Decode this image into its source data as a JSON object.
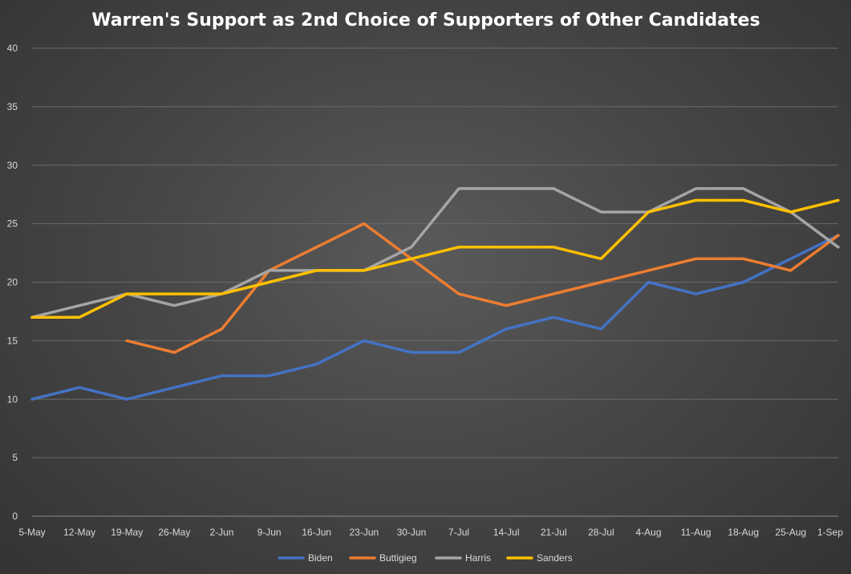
{
  "chart_data": {
    "type": "line",
    "title": "Warren's Support as 2nd Choice of Supporters of Other Candidates",
    "categories": [
      "5-May",
      "12-May",
      "19-May",
      "26-May",
      "2-Jun",
      "9-Jun",
      "16-Jun",
      "23-Jun",
      "30-Jun",
      "7-Jul",
      "14-Jul",
      "21-Jul",
      "28-Jul",
      "4-Aug",
      "11-Aug",
      "18-Aug",
      "25-Aug",
      "1-Sep"
    ],
    "ylim": [
      0,
      40
    ],
    "yticks": [
      "0",
      "5",
      "10",
      "15",
      "20",
      "25",
      "30",
      "35",
      "40"
    ],
    "grid": true,
    "legend_position": "bottom",
    "series": [
      {
        "name": "Biden",
        "color": "#4472c4",
        "values": [
          10,
          11,
          10,
          11,
          12,
          12,
          13,
          15,
          14,
          14,
          16,
          17,
          16,
          20,
          19,
          20,
          22,
          24
        ]
      },
      {
        "name": "Buttigieg",
        "color": "#ed7d31",
        "values": [
          null,
          null,
          15,
          14,
          16,
          21,
          23,
          25,
          22,
          19,
          18,
          19,
          20,
          21,
          22,
          22,
          21,
          24
        ]
      },
      {
        "name": "Harris",
        "color": "#a5a5a5",
        "values": [
          17,
          18,
          19,
          18,
          19,
          21,
          21,
          21,
          23,
          28,
          28,
          28,
          26,
          26,
          28,
          28,
          26,
          23
        ]
      },
      {
        "name": "Sanders",
        "color": "#ffc000",
        "values": [
          17,
          17,
          19,
          19,
          19,
          20,
          21,
          21,
          22,
          23,
          23,
          23,
          22,
          26,
          27,
          27,
          26,
          27
        ]
      }
    ]
  }
}
